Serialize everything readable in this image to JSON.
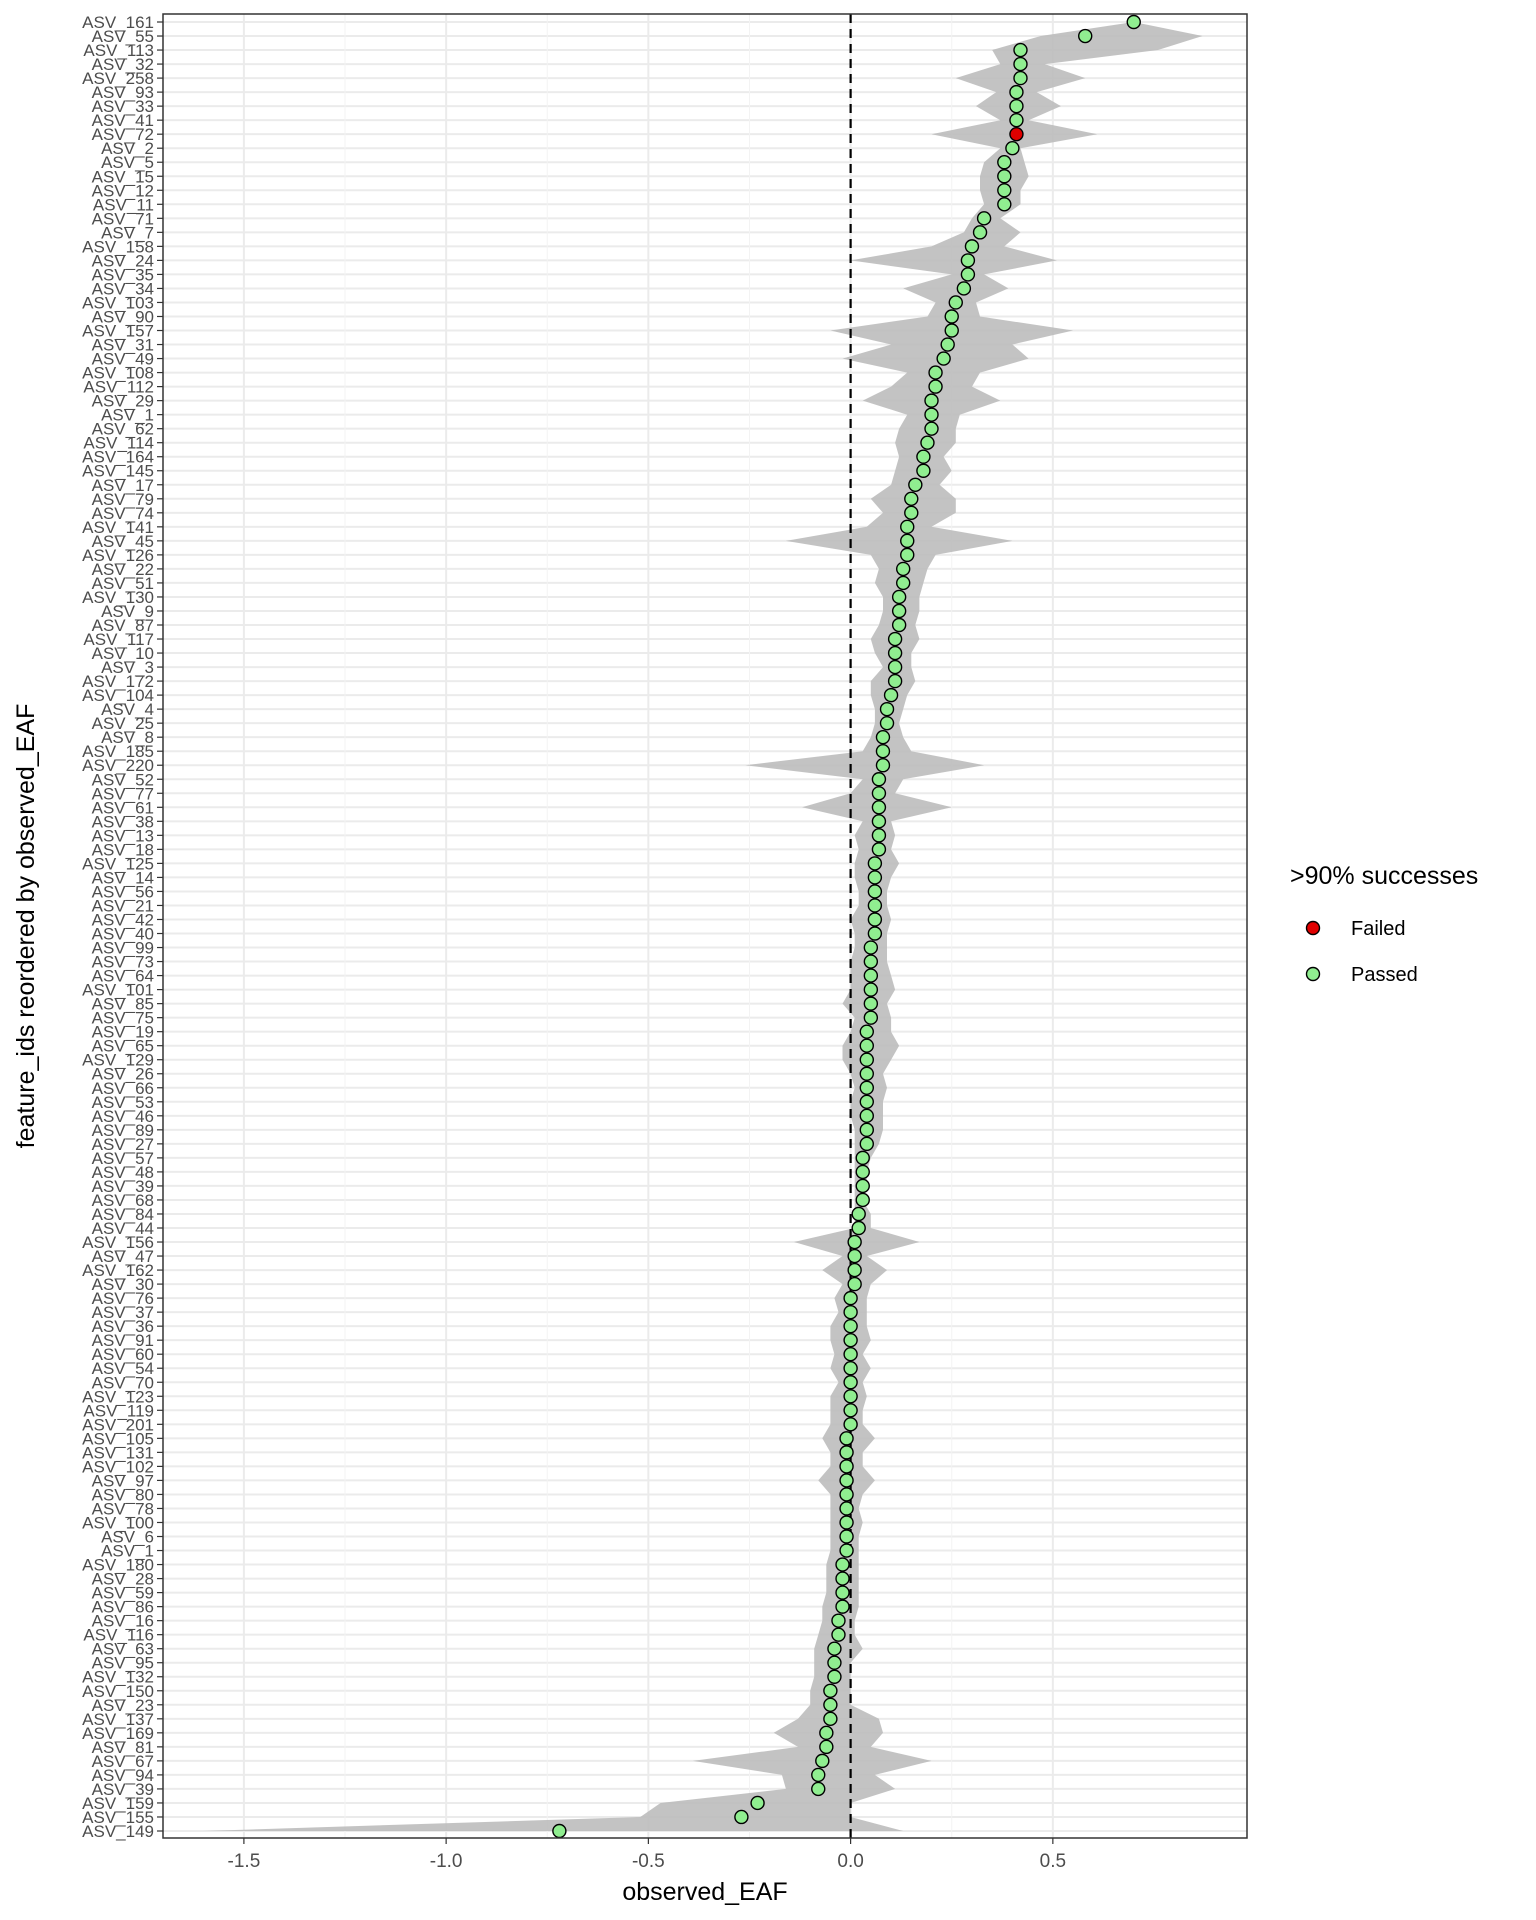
{
  "chart_data": {
    "type": "scatter",
    "xlabel": "observed_EAF",
    "ylabel": "feature_ids reordered by observed_EAF",
    "xlim": [
      -1.7,
      0.98
    ],
    "xticks": [
      -1.5,
      -1.0,
      -0.5,
      0.0,
      0.5
    ],
    "xtick_labels": [
      "-1.5",
      "-1.0",
      "-0.5",
      "0.0",
      "0.5"
    ],
    "reference_line": {
      "x": 0,
      "style": "dashed"
    },
    "grid": true,
    "legend": {
      "title": ">90% successes",
      "placement": "right",
      "entries": [
        {
          "label": "Failed",
          "color": "#e00000"
        },
        {
          "label": "Passed",
          "color": "#90ee90"
        }
      ]
    },
    "colors": {
      "ribbon": "#bdbdbd",
      "point_stroke": "#000000",
      "panel_border": "#333333",
      "grid": "#ebebeb"
    },
    "categories": [
      "ASV_161",
      "ASV_55",
      "ASV_113",
      "ASV_32",
      "ASV_258",
      "ASV_93",
      "ASV_33",
      "ASV_41",
      "ASV_72",
      "ASV_2",
      "ASV_5",
      "ASV_15",
      "ASV_12",
      "ASV_11",
      "ASV_71",
      "ASV_7",
      "ASV_158",
      "ASV_24",
      "ASV_35",
      "ASV_34",
      "ASV_103",
      "ASV_90",
      "ASV_157",
      "ASV_31",
      "ASV_49",
      "ASV_108",
      "ASV_112",
      "ASV_29",
      "ASV_1",
      "ASV_62",
      "ASV_114",
      "ASV_164",
      "ASV_145",
      "ASV_17",
      "ASV_79",
      "ASV_74",
      "ASV_141",
      "ASV_45",
      "ASV_126",
      "ASV_22",
      "ASV_51",
      "ASV_130",
      "ASV_9",
      "ASV_87",
      "ASV_117",
      "ASV_10",
      "ASV_3",
      "ASV_172",
      "ASV_104",
      "ASV_4",
      "ASV_25",
      "ASV_8",
      "ASV_185",
      "ASV_220",
      "ASV_52",
      "ASV_77",
      "ASV_61",
      "ASV_38",
      "ASV_13",
      "ASV_18",
      "ASV_125",
      "ASV_14",
      "ASV_56",
      "ASV_21",
      "ASV_42",
      "ASV_40",
      "ASV_99",
      "ASV_73",
      "ASV_64",
      "ASV_101",
      "ASV_85",
      "ASV_75",
      "ASV_19",
      "ASV_65",
      "ASV_129",
      "ASV_26",
      "ASV_66",
      "ASV_53",
      "ASV_46",
      "ASV_89",
      "ASV_27",
      "ASV_57",
      "ASV_48",
      "ASV_39",
      "ASV_68",
      "ASV_84",
      "ASV_44",
      "ASV_156",
      "ASV_47",
      "ASV_162",
      "ASV_30",
      "ASV_76",
      "ASV_37",
      "ASV_36",
      "ASV_91",
      "ASV_60",
      "ASV_54",
      "ASV_70",
      "ASV_123",
      "ASV_119",
      "ASV_201",
      "ASV_105",
      "ASV_131",
      "ASV_102",
      "ASV_97",
      "ASV_80",
      "ASV_78",
      "ASV_100",
      "ASV_6",
      "ASV_1",
      "ASV_180",
      "ASV_28",
      "ASV_59",
      "ASV_86",
      "ASV_16",
      "ASV_116",
      "ASV_63",
      "ASV_95",
      "ASV_132",
      "ASV_150",
      "ASV_23",
      "ASV_137",
      "ASV_169",
      "ASV_81",
      "ASV_67",
      "ASV_94",
      "ASV_39",
      "ASV_159",
      "ASV_155",
      "ASV_149"
    ],
    "series": [
      {
        "name": "Passed",
        "values": [
          0.7,
          0.58,
          0.42,
          0.42,
          0.42,
          0.41,
          0.41,
          0.41,
          0.41,
          0.4,
          0.38,
          0.38,
          0.38,
          0.38,
          0.33,
          0.32,
          0.3,
          0.29,
          0.29,
          0.28,
          0.26,
          0.25,
          0.25,
          0.24,
          0.23,
          0.21,
          0.21,
          0.2,
          0.2,
          0.2,
          0.19,
          0.18,
          0.18,
          0.16,
          0.15,
          0.15,
          0.14,
          0.14,
          0.14,
          0.13,
          0.13,
          0.12,
          0.12,
          0.12,
          0.11,
          0.11,
          0.11,
          0.11,
          0.1,
          0.09,
          0.09,
          0.08,
          0.08,
          0.08,
          0.07,
          0.07,
          0.07,
          0.07,
          0.07,
          0.07,
          0.06,
          0.06,
          0.06,
          0.06,
          0.06,
          0.06,
          0.05,
          0.05,
          0.05,
          0.05,
          0.05,
          0.05,
          0.04,
          0.04,
          0.04,
          0.04,
          0.04,
          0.04,
          0.04,
          0.04,
          0.04,
          0.03,
          0.03,
          0.03,
          0.03,
          0.02,
          0.02,
          0.01,
          0.01,
          0.01,
          0.01,
          0.0,
          0.0,
          0.0,
          0.0,
          0.0,
          0.0,
          0.0,
          0.0,
          0.0,
          0.0,
          -0.01,
          -0.01,
          -0.01,
          -0.01,
          -0.01,
          -0.01,
          -0.01,
          -0.01,
          -0.01,
          -0.02,
          -0.02,
          -0.02,
          -0.02,
          -0.03,
          -0.03,
          -0.04,
          -0.04,
          -0.04,
          -0.05,
          -0.05,
          -0.05,
          -0.06,
          -0.06,
          -0.07,
          -0.08,
          -0.08,
          -0.23,
          -0.27,
          -0.72
        ]
      },
      {
        "name": "Failed",
        "values": [
          null,
          null,
          null,
          null,
          null,
          null,
          null,
          null,
          0.41,
          null,
          null,
          null,
          null,
          null,
          null,
          null,
          null,
          null,
          null,
          null,
          null,
          null,
          null,
          null,
          null,
          null,
          null,
          null,
          null,
          null,
          null,
          null,
          null,
          null,
          null,
          null,
          null,
          null,
          null,
          null,
          null,
          null,
          null,
          null,
          null,
          null,
          null,
          null,
          null,
          null,
          null,
          null,
          null,
          null,
          null,
          null,
          null,
          null,
          null,
          null,
          null,
          null,
          null,
          null,
          null,
          null,
          null,
          null,
          null,
          null,
          null,
          null,
          null,
          null,
          null,
          null,
          null,
          null,
          null,
          null,
          null,
          null,
          null,
          null,
          null,
          null,
          null,
          null,
          null,
          null,
          null,
          null,
          null,
          null,
          null,
          null,
          null,
          null,
          null,
          null,
          null,
          null,
          null,
          null,
          null,
          null,
          null,
          null,
          null,
          null,
          null,
          null,
          null,
          null,
          null,
          null,
          null,
          null,
          null,
          null,
          null,
          null,
          null,
          null,
          null,
          null,
          null,
          null,
          null,
          null
        ]
      }
    ],
    "ribbon_low": [
      0.7,
      0.47,
      0.35,
      0.37,
      0.26,
      0.36,
      0.31,
      0.37,
      0.2,
      0.37,
      0.33,
      0.32,
      0.32,
      0.33,
      0.3,
      0.28,
      0.2,
      0.0,
      0.25,
      0.13,
      0.21,
      0.19,
      -0.05,
      0.1,
      -0.02,
      0.14,
      0.1,
      0.03,
      0.14,
      0.12,
      0.11,
      0.12,
      0.11,
      0.1,
      0.05,
      0.08,
      0.04,
      -0.16,
      0.05,
      0.07,
      0.06,
      0.08,
      0.08,
      0.07,
      0.05,
      0.06,
      0.08,
      0.05,
      0.05,
      0.06,
      0.06,
      0.05,
      0.03,
      -0.26,
      0.03,
      0.0,
      -0.12,
      0.03,
      0.01,
      0.02,
      0.01,
      0.01,
      0.02,
      0.02,
      0.0,
      0.01,
      0.01,
      0.0,
      0.0,
      0.0,
      -0.02,
      0.01,
      0.0,
      -0.02,
      -0.02,
      0.0,
      0.01,
      0.0,
      0.0,
      0.01,
      0.01,
      0.01,
      0.01,
      0.01,
      0.01,
      0.01,
      0.01,
      -0.14,
      -0.02,
      -0.07,
      -0.02,
      -0.04,
      -0.03,
      -0.05,
      -0.05,
      -0.04,
      -0.05,
      -0.03,
      -0.05,
      -0.05,
      -0.05,
      -0.07,
      -0.05,
      -0.05,
      -0.08,
      -0.05,
      -0.05,
      -0.05,
      -0.05,
      -0.05,
      -0.06,
      -0.06,
      -0.06,
      -0.07,
      -0.07,
      -0.08,
      -0.09,
      -0.09,
      -0.09,
      -0.1,
      -0.1,
      -0.13,
      -0.19,
      -0.13,
      -0.39,
      -0.17,
      -0.16,
      -0.47,
      -0.52,
      -1.6
    ],
    "ribbon_high": [
      0.7,
      0.87,
      0.76,
      0.48,
      0.58,
      0.46,
      0.52,
      0.44,
      0.61,
      0.42,
      0.43,
      0.44,
      0.42,
      0.42,
      0.37,
      0.42,
      0.38,
      0.51,
      0.33,
      0.39,
      0.31,
      0.32,
      0.55,
      0.4,
      0.44,
      0.32,
      0.3,
      0.37,
      0.27,
      0.26,
      0.26,
      0.23,
      0.25,
      0.22,
      0.26,
      0.26,
      0.2,
      0.4,
      0.21,
      0.19,
      0.18,
      0.17,
      0.17,
      0.16,
      0.17,
      0.15,
      0.15,
      0.16,
      0.14,
      0.13,
      0.12,
      0.13,
      0.15,
      0.33,
      0.13,
      0.11,
      0.25,
      0.1,
      0.11,
      0.1,
      0.12,
      0.1,
      0.09,
      0.09,
      0.1,
      0.09,
      0.09,
      0.09,
      0.1,
      0.11,
      0.09,
      0.1,
      0.1,
      0.12,
      0.1,
      0.08,
      0.09,
      0.08,
      0.08,
      0.08,
      0.07,
      0.05,
      0.04,
      0.04,
      0.03,
      0.05,
      0.05,
      0.17,
      0.04,
      0.09,
      0.05,
      0.04,
      0.04,
      0.04,
      0.05,
      0.03,
      0.05,
      0.03,
      0.04,
      0.03,
      0.03,
      0.06,
      0.03,
      0.03,
      0.06,
      0.03,
      0.02,
      0.03,
      0.02,
      0.02,
      0.02,
      0.02,
      0.02,
      0.02,
      0.01,
      0.01,
      0.03,
      0.0,
      0.0,
      0.0,
      0.0,
      0.07,
      0.08,
      0.05,
      0.2,
      0.06,
      0.11,
      0.0,
      0.0,
      0.13
    ]
  }
}
